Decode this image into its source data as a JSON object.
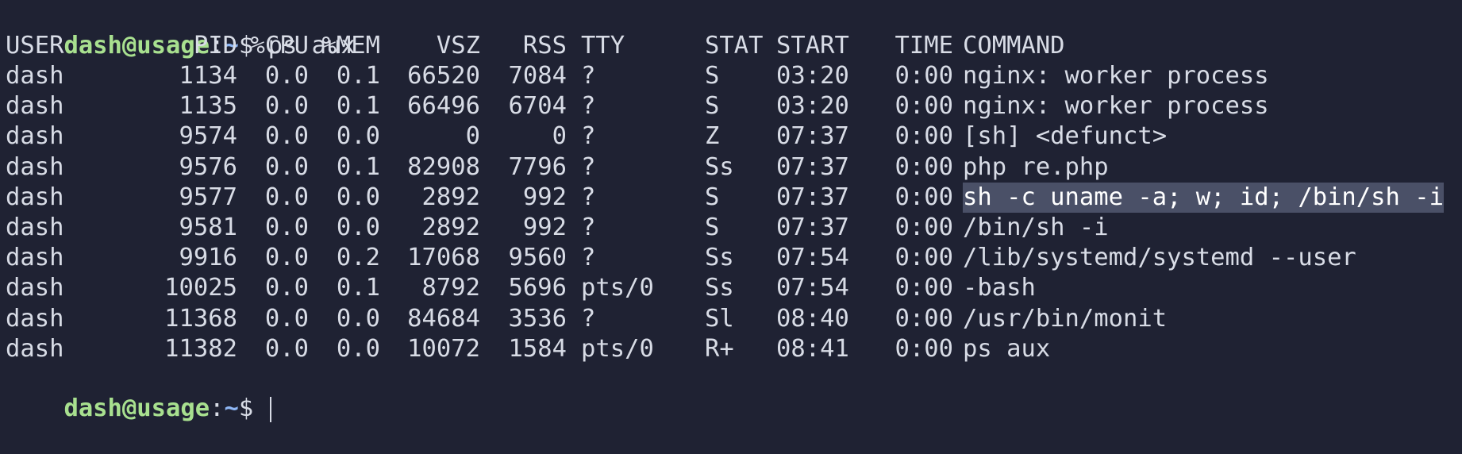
{
  "terminal": {
    "prompt": {
      "user_host": "dash@usage",
      "separator": ":",
      "path": "~",
      "symbol": "$"
    },
    "command": "ps aux",
    "headers": [
      "USER",
      "PID",
      "%CPU",
      "%MEM",
      "VSZ",
      "RSS",
      "TTY",
      "STAT",
      "START",
      "TIME",
      "COMMAND"
    ],
    "rows": [
      [
        "dash",
        "1134",
        "0.0",
        "0.1",
        "66520",
        "7084",
        "?",
        "S",
        "03:20",
        "0:00",
        "nginx: worker process"
      ],
      [
        "dash",
        "1135",
        "0.0",
        "0.1",
        "66496",
        "6704",
        "?",
        "S",
        "03:20",
        "0:00",
        "nginx: worker process"
      ],
      [
        "dash",
        "9574",
        "0.0",
        "0.0",
        "0",
        "0",
        "?",
        "Z",
        "07:37",
        "0:00",
        "[sh] <defunct>"
      ],
      [
        "dash",
        "9576",
        "0.0",
        "0.1",
        "82908",
        "7796",
        "?",
        "Ss",
        "07:37",
        "0:00",
        "php re.php"
      ],
      [
        "dash",
        "9577",
        "0.0",
        "0.0",
        "2892",
        "992",
        "?",
        "S",
        "07:37",
        "0:00",
        "sh -c uname -a; w; id; /bin/sh -i"
      ],
      [
        "dash",
        "9581",
        "0.0",
        "0.0",
        "2892",
        "992",
        "?",
        "S",
        "07:37",
        "0:00",
        "/bin/sh -i"
      ],
      [
        "dash",
        "9916",
        "0.0",
        "0.2",
        "17068",
        "9560",
        "?",
        "Ss",
        "07:54",
        "0:00",
        "/lib/systemd/systemd --user"
      ],
      [
        "dash",
        "10025",
        "0.0",
        "0.1",
        "8792",
        "5696",
        "pts/0",
        "Ss",
        "07:54",
        "0:00",
        "-bash"
      ],
      [
        "dash",
        "11368",
        "0.0",
        "0.0",
        "84684",
        "3536",
        "?",
        "Sl",
        "08:40",
        "0:00",
        "/usr/bin/monit"
      ],
      [
        "dash",
        "11382",
        "0.0",
        "0.0",
        "10072",
        "1584",
        "pts/0",
        "R+",
        "08:41",
        "0:00",
        "ps aux"
      ]
    ],
    "selected_row_index": 4,
    "colors": {
      "background": "#1f2233",
      "foreground": "#d8dce6",
      "prompt_user": "#a8e08f",
      "prompt_path": "#8fb7f5",
      "selection": "#4a5067"
    }
  }
}
